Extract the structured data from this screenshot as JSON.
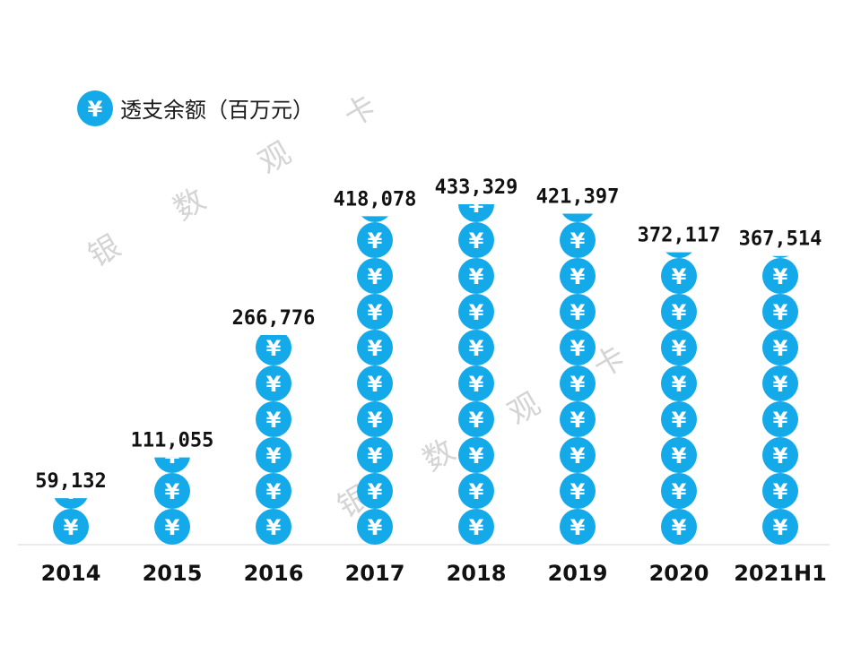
{
  "chart_data": {
    "type": "bar",
    "title": "",
    "xlabel": "",
    "ylabel": "",
    "legend": {
      "label": "透支余额（百万元）",
      "position": "top-left",
      "icon": "yuan-coin-icon"
    },
    "categories": [
      "2014",
      "2015",
      "2016",
      "2017",
      "2018",
      "2019",
      "2020",
      "2021H1"
    ],
    "series": [
      {
        "name": "透支余额（百万元）",
        "values": [
          59132,
          111055,
          266776,
          418078,
          433329,
          421397,
          372117,
          367514
        ],
        "value_labels": [
          "59,132",
          "111,055",
          "266,776",
          "418,078",
          "433,329",
          "421,397",
          "372,117",
          "367,514"
        ]
      }
    ],
    "ylim": [
      0,
      433329
    ],
    "grid": false,
    "color": "#14a9e8"
  },
  "watermark": {
    "chars": [
      "银",
      "数",
      "观",
      "卡"
    ]
  },
  "coin_symbol": "¥"
}
